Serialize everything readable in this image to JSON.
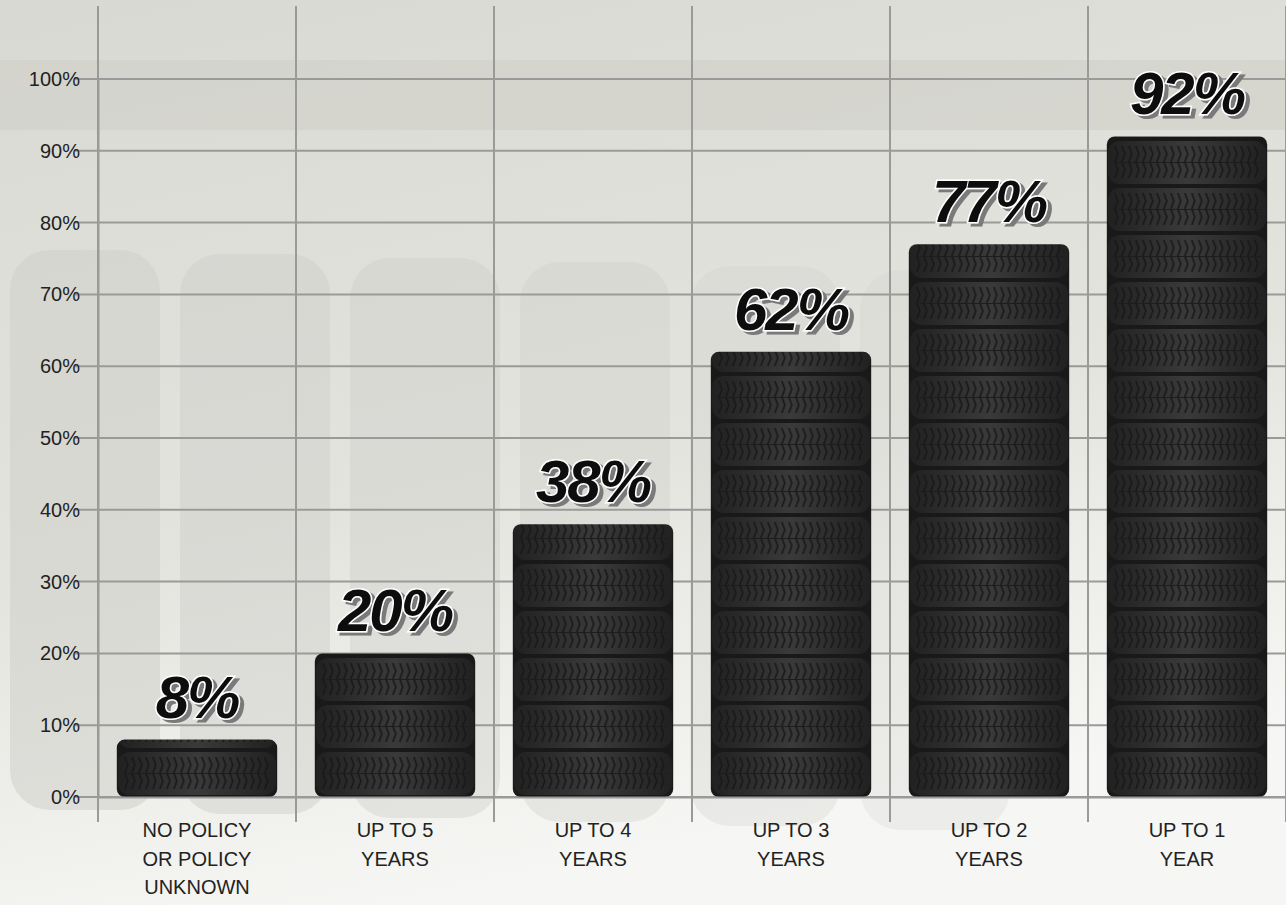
{
  "chart_data": {
    "type": "bar",
    "categories": [
      "NO POLICY OR POLICY UNKNOWN",
      "UP TO 5 YEARS",
      "UP TO 4 YEARS",
      "UP TO 3 YEARS",
      "UP TO 2 YEARS",
      "UP TO 1 YEAR"
    ],
    "values": [
      8,
      20,
      38,
      62,
      77,
      92
    ],
    "value_labels": [
      "8%",
      "20%",
      "38%",
      "62%",
      "77%",
      "92%"
    ],
    "color": "#333333",
    "ylim": [
      0,
      100
    ],
    "yticks": [
      {
        "value": 0,
        "label": "0%"
      },
      {
        "value": 10,
        "label": "10%"
      },
      {
        "value": 20,
        "label": "20%"
      },
      {
        "value": 30,
        "label": "30%"
      },
      {
        "value": 40,
        "label": "40%"
      },
      {
        "value": 50,
        "label": "50%"
      },
      {
        "value": 60,
        "label": "60%"
      },
      {
        "value": 70,
        "label": "70%"
      },
      {
        "value": 80,
        "label": "80%"
      },
      {
        "value": 90,
        "label": "90%"
      },
      {
        "value": 100,
        "label": "100%"
      }
    ],
    "grid": true,
    "data_labels": true
  }
}
